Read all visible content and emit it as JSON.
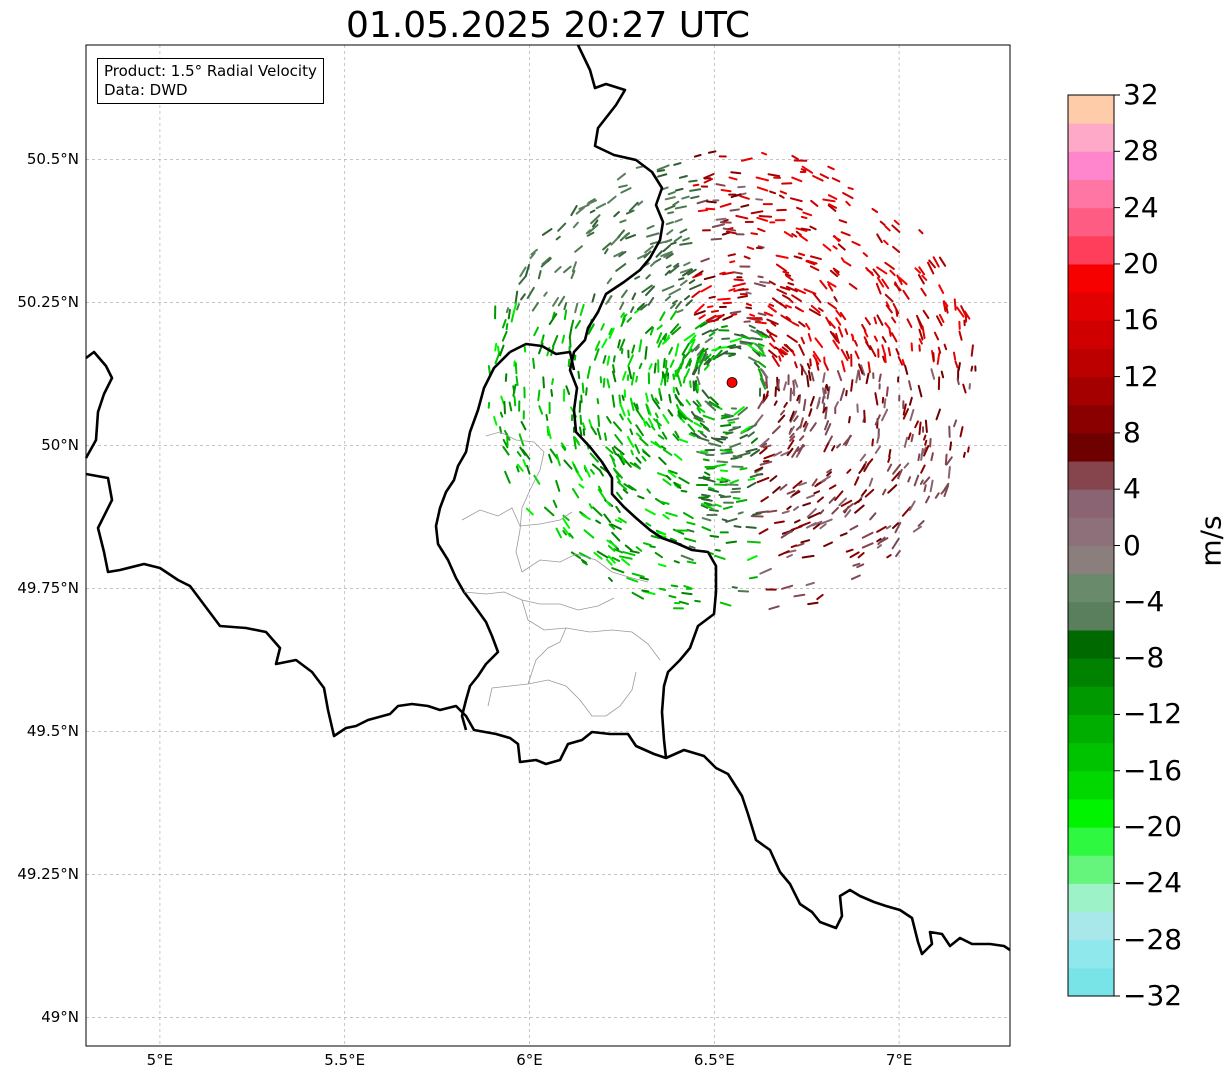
{
  "title": "01.05.2025 20:27 UTC",
  "info": {
    "product": "Product: 1.5° Radial Velocity",
    "source": "Data: DWD"
  },
  "map": {
    "lon_range": [
      4.8,
      7.3
    ],
    "lat_range": [
      48.95,
      50.7
    ],
    "y_ticks": [
      {
        "lat": 50.5,
        "label": "50.5°N"
      },
      {
        "lat": 50.25,
        "label": "50.25°N"
      },
      {
        "lat": 50.0,
        "label": "50°N"
      },
      {
        "lat": 49.75,
        "label": "49.75°N"
      },
      {
        "lat": 49.5,
        "label": "49.5°N"
      },
      {
        "lat": 49.25,
        "label": "49.25°N"
      },
      {
        "lat": 49.0,
        "label": "49°N"
      }
    ],
    "x_ticks": [
      {
        "lon": 5.0,
        "label": "5°E"
      },
      {
        "lon": 5.5,
        "label": "5.5°E"
      },
      {
        "lon": 6.0,
        "label": "6°E"
      },
      {
        "lon": 6.5,
        "label": "6.5°E"
      },
      {
        "lon": 7.0,
        "label": "7°E"
      }
    ],
    "radar_site": {
      "lon": 6.548,
      "lat": 50.11,
      "color": "#ff0000"
    },
    "gridline_color": "#b0b0b0",
    "border_color": "#000000",
    "subregion_color": "#9a9a9a"
  },
  "colorbar": {
    "min": -32,
    "max": 32,
    "label": "m/s",
    "ticks": [
      "32",
      "28",
      "24",
      "20",
      "16",
      "12",
      "8",
      "4",
      "0",
      "−4",
      "−8",
      "−12",
      "−16",
      "−20",
      "−24",
      "−28",
      "−32"
    ],
    "colors_bottom_to_top": [
      "#78e4e8",
      "#8ee8ec",
      "#a9e8ea",
      "#9ef2c8",
      "#66f57c",
      "#2ef83f",
      "#00f400",
      "#00d800",
      "#00c300",
      "#00ae00",
      "#009900",
      "#008200",
      "#006a00",
      "#5a7f5c",
      "#6a8a6c",
      "#8a7f7d",
      "#8d7079",
      "#8a6472",
      "#86444c",
      "#6e0000",
      "#8a0000",
      "#a40000",
      "#bc0000",
      "#d00000",
      "#e20000",
      "#f60000",
      "#ff3e5c",
      "#ff5c84",
      "#ff76a5",
      "#ff86cc",
      "#ffa9c8",
      "#ffcca9"
    ]
  }
}
